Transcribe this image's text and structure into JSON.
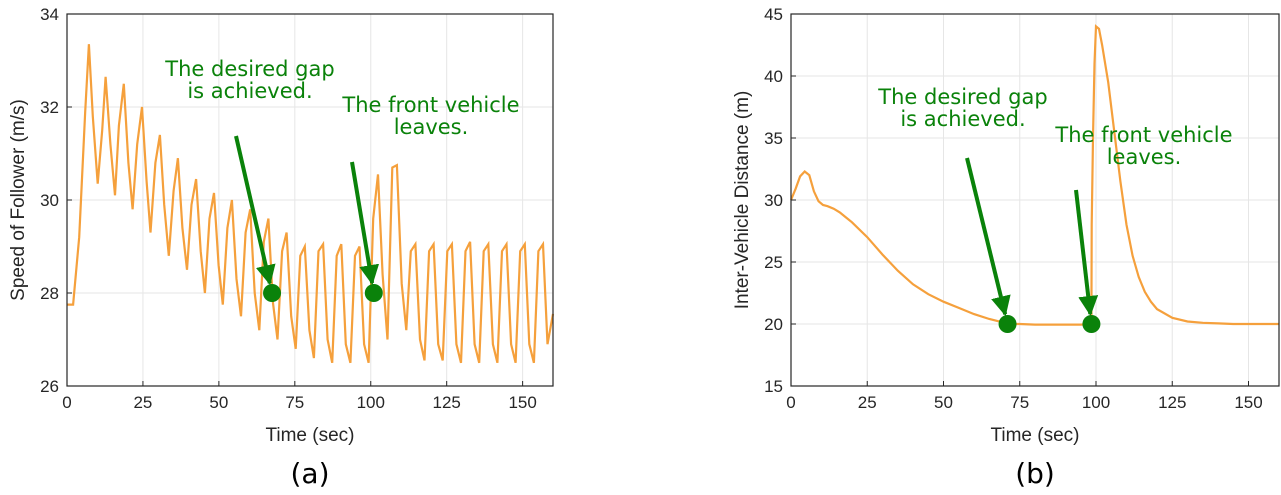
{
  "chart_data": [
    {
      "type": "line",
      "caption": "(a)",
      "xlabel": "Time (sec)",
      "ylabel": "Speed of Follower (m/s)",
      "xlim": [
        0,
        160
      ],
      "ylim": [
        26,
        34
      ],
      "xticks": [
        0,
        25,
        50,
        75,
        100,
        125,
        150
      ],
      "yticks": [
        26,
        28,
        30,
        32,
        34
      ],
      "grid": true,
      "series_color": "#f5a03c",
      "annotation_color": "#0a820a",
      "series": [
        {
          "x": [
            0,
            2,
            4,
            6,
            7.2,
            8.5,
            10.1,
            11.6,
            12.7,
            14.3,
            15.8,
            17.1,
            18.7,
            20.2,
            21.6,
            23.1,
            24.7,
            26.2,
            27.5,
            29.1,
            30.6,
            32.0,
            33.5,
            35.1,
            36.5,
            38.0,
            39.5,
            41.0,
            42.5,
            44.0,
            45.4,
            46.9,
            48.4,
            49.9,
            51.3,
            52.8,
            54.3,
            55.8,
            57.3,
            58.8,
            60.3,
            61.8,
            63.3,
            64.8,
            66.3,
            67.8,
            69.3,
            70.8,
            72.3,
            73.8,
            75.3,
            76.8,
            78.3,
            79.8,
            81.3,
            82.8,
            84.3,
            85.8,
            87.3,
            88.8,
            90.3,
            91.8,
            93.3,
            94.8,
            96.3,
            97.8,
            99.3,
            100.8,
            102.4,
            103.9,
            105.5,
            107.1,
            108.6,
            110.2,
            111.7,
            113.2,
            114.7,
            116.2,
            117.7,
            119.2,
            120.7,
            122.2,
            123.7,
            125.2,
            126.7,
            128.2,
            129.7,
            131.2,
            132.7,
            134.2,
            135.7,
            137.2,
            138.7,
            140.2,
            141.7,
            143.2,
            144.7,
            146.2,
            147.7,
            149.2,
            150.7,
            152.2,
            153.7,
            155.2,
            156.7,
            158.2,
            160
          ],
          "y": [
            27.75,
            27.75,
            29.2,
            31.9,
            33.35,
            31.8,
            30.35,
            31.5,
            32.65,
            31.2,
            30.1,
            31.6,
            32.5,
            30.8,
            29.8,
            31.2,
            32.0,
            30.4,
            29.3,
            30.8,
            31.4,
            29.9,
            28.8,
            30.2,
            30.9,
            29.4,
            28.5,
            29.9,
            30.45,
            28.9,
            28.0,
            29.6,
            30.15,
            28.6,
            27.75,
            29.4,
            30.0,
            28.3,
            27.5,
            29.3,
            29.8,
            28.0,
            27.2,
            29.1,
            29.6,
            27.8,
            27.0,
            28.9,
            29.3,
            27.5,
            26.8,
            28.8,
            29.0,
            27.2,
            26.6,
            28.9,
            29.05,
            27.0,
            26.5,
            28.8,
            29.05,
            26.9,
            26.5,
            28.8,
            29.0,
            26.9,
            26.5,
            29.6,
            30.55,
            28.4,
            27.0,
            30.7,
            30.75,
            28.2,
            27.2,
            28.9,
            29.05,
            27.0,
            26.55,
            28.9,
            29.05,
            26.9,
            26.55,
            28.9,
            29.05,
            26.9,
            26.5,
            28.9,
            29.1,
            26.9,
            26.5,
            28.9,
            29.05,
            26.9,
            26.5,
            28.9,
            29.05,
            26.9,
            26.5,
            28.9,
            29.05,
            26.9,
            26.5,
            28.9,
            29.05,
            26.9,
            27.55
          ]
        }
      ],
      "annotations": [
        {
          "lines": [
            "The desired gap",
            "is achieved."
          ],
          "point": [
            67.5,
            28.0
          ]
        },
        {
          "lines": [
            "The front vehicle",
            "leaves."
          ],
          "point": [
            101.0,
            28.0
          ]
        }
      ]
    },
    {
      "type": "line",
      "caption": "(b)",
      "xlabel": "Time (sec)",
      "ylabel": "Inter-Vehicle Distance (m)",
      "xlim": [
        0,
        160
      ],
      "ylim": [
        15,
        45
      ],
      "xticks": [
        0,
        25,
        50,
        75,
        100,
        125,
        150
      ],
      "yticks": [
        15,
        20,
        25,
        30,
        35,
        40,
        45
      ],
      "grid": true,
      "series_color": "#f5a03c",
      "annotation_color": "#0a820a",
      "series": [
        {
          "x": [
            0,
            1.5,
            3,
            4.5,
            6,
            7.5,
            9,
            10.5,
            12,
            14,
            16,
            18,
            20,
            25,
            30,
            35,
            40,
            45,
            50,
            55,
            60,
            65,
            70,
            72,
            75,
            80,
            85,
            90,
            95,
            98.5,
            98.6,
            99.0,
            99.5,
            100,
            101,
            102,
            104,
            106,
            108,
            110,
            112,
            114,
            116,
            118,
            120,
            125,
            130,
            135,
            140,
            145,
            150,
            155,
            160
          ],
          "y": [
            30.0,
            30.9,
            31.9,
            32.3,
            32.0,
            30.7,
            29.9,
            29.6,
            29.5,
            29.3,
            29.0,
            28.6,
            28.2,
            27.0,
            25.6,
            24.3,
            23.2,
            22.4,
            21.8,
            21.3,
            20.8,
            20.4,
            20.1,
            20.0,
            20.0,
            19.95,
            19.95,
            19.95,
            19.95,
            20.0,
            28.0,
            35.0,
            41.0,
            44.0,
            43.8,
            42.5,
            39.5,
            35.5,
            31.5,
            28.0,
            25.5,
            23.8,
            22.6,
            21.8,
            21.2,
            20.5,
            20.2,
            20.1,
            20.05,
            20.0,
            20.0,
            20.0,
            20.0
          ]
        }
      ],
      "annotations": [
        {
          "lines": [
            "The desired gap",
            "is achieved."
          ],
          "point": [
            71.0,
            20.0
          ]
        },
        {
          "lines": [
            "The front vehicle",
            "leaves."
          ],
          "point": [
            98.5,
            20.0
          ]
        }
      ]
    }
  ]
}
